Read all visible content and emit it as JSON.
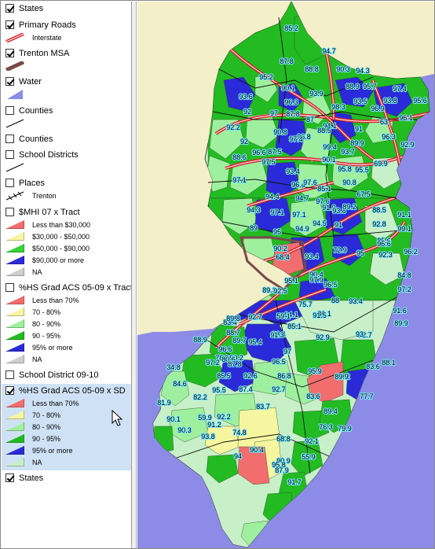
{
  "legend": {
    "layers": [
      {
        "id": "states-top",
        "name": "States",
        "checked": true,
        "symbols": []
      },
      {
        "id": "primary-roads",
        "name": "Primary Roads",
        "checked": true,
        "symbols": [
          {
            "kind": "interstate-line",
            "label": "Interstate"
          }
        ]
      },
      {
        "id": "trenton-msa",
        "name": "Trenton MSA",
        "checked": true,
        "symbols": [
          {
            "kind": "msa-line",
            "label": ""
          }
        ]
      },
      {
        "id": "water",
        "name": "Water",
        "checked": true,
        "symbols": [
          {
            "kind": "water-fill",
            "label": ""
          }
        ]
      },
      {
        "id": "counties-1",
        "name": "Counties",
        "checked": false,
        "symbols": [
          {
            "kind": "thin-line",
            "label": ""
          }
        ]
      },
      {
        "id": "counties-2",
        "name": "Counties",
        "checked": false,
        "symbols": []
      },
      {
        "id": "school-districts",
        "name": "School Districts",
        "checked": false,
        "symbols": [
          {
            "kind": "thin-line",
            "label": ""
          }
        ]
      },
      {
        "id": "places",
        "name": "Places",
        "checked": false,
        "symbols": [
          {
            "kind": "places-hatch",
            "label": "Trenton"
          }
        ]
      },
      {
        "id": "mhi-tract",
        "name": "$MHI 07 x Tract",
        "checked": false,
        "classes": [
          {
            "label": "Less than $30,000",
            "color": "#f26d6d"
          },
          {
            "label": "$30,000 - $50,000",
            "color": "#f6f6a0"
          },
          {
            "label": "$50,000 - $90,000",
            "color": "#39d339"
          },
          {
            "label": "$90,000 or more",
            "color": "#2a2ad8"
          },
          {
            "label": "NA",
            "color": "#cfcfcf"
          }
        ]
      },
      {
        "id": "hsgrad-tract",
        "name": "%HS Grad ACS 05-09 x Tract",
        "checked": false,
        "classes": [
          {
            "label": "Less than 70%",
            "color": "#f26d6d"
          },
          {
            "label": "70 - 80%",
            "color": "#f6f6a0"
          },
          {
            "label": "80 - 90%",
            "color": "#9ef09e"
          },
          {
            "label": "90 - 95%",
            "color": "#22bb22"
          },
          {
            "label": "95% or more",
            "color": "#2a2ad8"
          },
          {
            "label": "NA",
            "color": "#cfcfcf"
          }
        ]
      },
      {
        "id": "school-district-0910",
        "name": "School District 09-10",
        "checked": false,
        "symbols": []
      },
      {
        "id": "hsgrad-sd",
        "name": "%HS Grad ACS 05-09 x SD",
        "checked": true,
        "selected": true,
        "classes": [
          {
            "label": "Less than 70%",
            "color": "#f26d6d"
          },
          {
            "label": "70 - 80%",
            "color": "#f6f6a0"
          },
          {
            "label": "80 - 90%",
            "color": "#9ef09e"
          },
          {
            "label": "90 - 95%",
            "color": "#22bb22"
          },
          {
            "label": "95% or more",
            "color": "#2a2ad8"
          },
          {
            "label": "NA",
            "color": "#c8f0c8"
          }
        ]
      },
      {
        "id": "states-bottom",
        "name": "States",
        "checked": true,
        "symbols": []
      }
    ]
  },
  "map": {
    "colors": {
      "water": "#8c8ce6",
      "neighbor_land": "#f3efc8",
      "lt70": "#f26d6d",
      "c70_80": "#f6f6a0",
      "c80_90": "#9ef09e",
      "c90_95": "#22bb22",
      "c95plus": "#2a2ad8",
      "na": "#c8f0c8",
      "interstate": "#d8232a",
      "msa": "#7a4a4a",
      "label_halo": "#7fe8ff"
    },
    "labels": [
      "85.2",
      "94.7",
      "87.8",
      "88.8",
      "90.3",
      "94.3",
      "95.2",
      "90.1",
      "88.9",
      "95.7",
      "97.4",
      "93.6",
      "93.9",
      "96.3",
      "93.5",
      "93.8",
      "95.6",
      "92",
      "87.8",
      "97",
      "87",
      "98.3",
      "94.1",
      "96.9",
      "96.1",
      "92.2",
      "90.8",
      "88.5",
      "91",
      "63",
      "92.9",
      "92",
      "96.8",
      "97.4",
      "99.4",
      "93.7",
      "96.3",
      "87.5",
      "96.6",
      "89.9",
      "88.6",
      "97.5",
      "93.4",
      "90.1",
      "95.8",
      "95.5",
      "69.9",
      "97.1",
      "96.4",
      "97.6",
      "90.8",
      "90.1",
      "94.4",
      "85.1",
      "94.7",
      "67.5",
      "94.3",
      "97.1",
      "97.1",
      "91.9",
      "97.6",
      "93.8",
      "89.2",
      "88.5",
      "91.1",
      "89",
      "95",
      "94.9",
      "94.5",
      "92.8",
      "99.1",
      "90.2",
      "91",
      "85.6",
      "68.4",
      "93.4",
      "72.9",
      "95",
      "96.6",
      "92.3",
      "96.2",
      "90.4",
      "95.1",
      "97.9",
      "84.8",
      "89.3",
      "92.5",
      "75.7",
      "88",
      "93.4",
      "96.5",
      "97.2",
      "83.4",
      "94.1",
      "86.1",
      "91.6",
      "59.1",
      "91.5",
      "89.8",
      "92.7",
      "85.1",
      "88.7",
      "89.7",
      "95.4",
      "98.4",
      "91.3",
      "82.7",
      "89.9",
      "88.9",
      "92.9",
      "96.6",
      "97",
      "93",
      "78.9",
      "90.2",
      "80.6",
      "96.5",
      "34.8",
      "97.2",
      "95.9",
      "87.8",
      "83.6",
      "88.1",
      "85.5",
      "79.2",
      "84.6",
      "92.6",
      "86.8",
      "89.9",
      "95.5",
      "87.4",
      "92.7",
      "77.7",
      "81.9",
      "82.2",
      "83.7",
      "83.6",
      "90.1",
      "59.9",
      "92.2",
      "89.4",
      "91.2",
      "76.3",
      "79.9",
      "90.3",
      "93.8",
      "74.8",
      "68.8",
      "92.1",
      "94",
      "90.4",
      "55.9",
      "90.9",
      "95.8",
      "87.9",
      "91.7"
    ]
  }
}
